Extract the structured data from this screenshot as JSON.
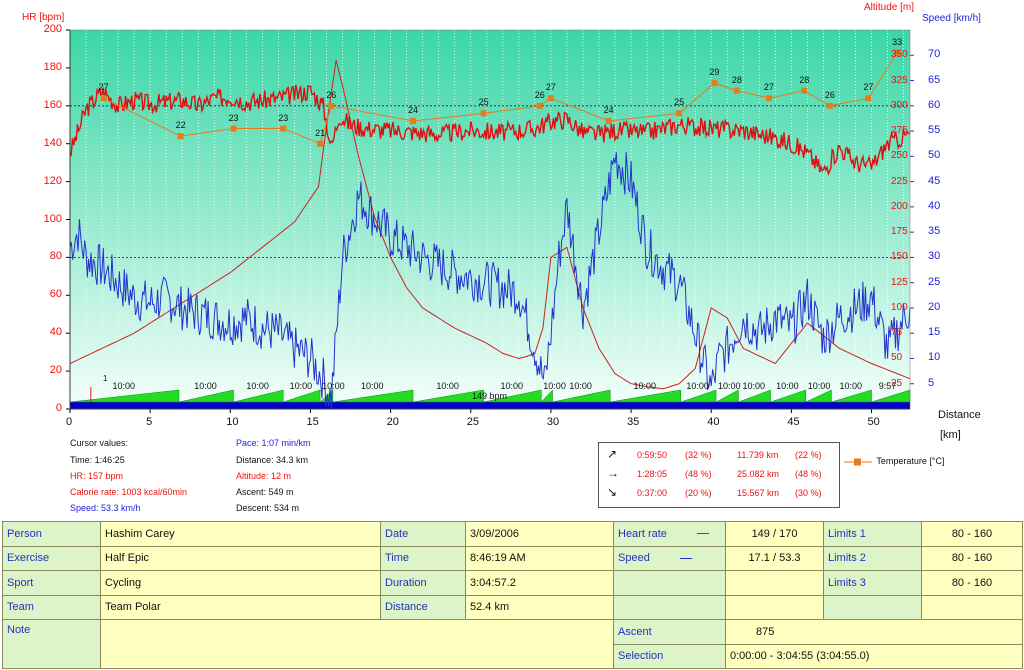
{
  "axes": {
    "hr_title": "HR [bpm]",
    "alt_title": "Altitude [m]",
    "speed_title": "Speed [km/h]",
    "dist_title": "Distance",
    "dist_unit": "[km]",
    "hr_ticks": [
      "200",
      "180",
      "160",
      "140",
      "120",
      "100",
      "80",
      "60",
      "40",
      "20",
      "0"
    ],
    "alt_ticks": [
      "350",
      "325",
      "300",
      "275",
      "250",
      "225",
      "200",
      "175",
      "150",
      "125",
      "100",
      "75",
      "50",
      "25"
    ],
    "speed_ticks": [
      "70",
      "65",
      "60",
      "55",
      "50",
      "45",
      "40",
      "35",
      "30",
      "25",
      "20",
      "15",
      "10",
      "5"
    ],
    "dist_ticks": [
      "0",
      "5",
      "10",
      "15",
      "20",
      "25",
      "30",
      "35",
      "40",
      "45",
      "50"
    ]
  },
  "chart_data": {
    "type": "line",
    "xlabel": "Distance [km]",
    "xlim": [
      0,
      52.4
    ],
    "hr_ylim": [
      0,
      200
    ],
    "alt_ylim": [
      0,
      375
    ],
    "speed_ylim": [
      0,
      75
    ],
    "hr_limits": [
      80,
      160
    ],
    "series": [
      {
        "name": "HR",
        "color": "#dd1111",
        "x": [
          0,
          1,
          2,
          3,
          4,
          5,
          6,
          7,
          8,
          9,
          10,
          11,
          12,
          13,
          14,
          15,
          15.8,
          16.3,
          16.8,
          17.5,
          18.5,
          20,
          21.5,
          23,
          25,
          27,
          29,
          30,
          31,
          32,
          33,
          34,
          36,
          38,
          40,
          42,
          44,
          45,
          46,
          47,
          48,
          49,
          50,
          51,
          52.4
        ],
        "values": [
          135,
          158,
          168,
          160,
          163,
          161,
          162,
          163,
          160,
          164,
          165,
          162,
          163,
          164,
          166,
          168,
          160,
          138,
          155,
          150,
          148,
          147,
          146,
          145,
          147,
          146,
          148,
          152,
          153,
          146,
          145,
          147,
          146,
          150,
          148,
          147,
          143,
          140,
          135,
          125,
          138,
          130,
          128,
          140,
          145
        ]
      },
      {
        "name": "Altitude",
        "color": "#cc2222",
        "x": [
          0,
          2,
          4,
          6,
          8,
          10,
          12,
          14,
          15.5,
          16,
          16.6,
          17,
          18,
          19,
          20,
          21,
          22,
          24,
          26,
          27,
          28,
          28.5,
          29,
          29.5,
          30,
          31,
          32,
          33,
          34,
          35,
          36,
          37,
          38,
          39,
          40,
          41,
          42,
          44,
          46,
          48,
          50,
          52.4
        ],
        "values": [
          45,
          60,
          75,
          95,
          115,
          135,
          160,
          185,
          220,
          280,
          345,
          320,
          250,
          190,
          150,
          120,
          100,
          80,
          65,
          55,
          50,
          52,
          55,
          80,
          150,
          160,
          100,
          60,
          35,
          25,
          22,
          20,
          25,
          40,
          100,
          90,
          60,
          45,
          85,
          60,
          45,
          30
        ]
      },
      {
        "name": "Speed",
        "color": "#2233cc",
        "x": [
          0,
          0.5,
          1,
          2,
          3,
          4,
          5,
          6,
          7,
          8,
          9,
          10,
          11,
          12,
          13,
          14,
          15,
          15.8,
          16.3,
          17,
          18,
          19,
          20,
          21,
          22,
          24,
          26,
          28,
          29,
          29.6,
          30,
          30.5,
          31,
          32,
          33,
          34,
          35,
          36,
          37,
          38,
          39,
          40,
          40.5,
          41,
          42,
          43,
          44,
          45,
          46,
          47,
          48,
          49,
          50,
          51,
          52.4
        ],
        "values": [
          32,
          35,
          30,
          28,
          25,
          22,
          21,
          22,
          20,
          19,
          18,
          17,
          18,
          16,
          15,
          12,
          10,
          6,
          2,
          30,
          42,
          38,
          34,
          32,
          30,
          27,
          25,
          23,
          12,
          5,
          15,
          30,
          40,
          20,
          35,
          50,
          45,
          32,
          28,
          25,
          15,
          4,
          10,
          12,
          18,
          15,
          18,
          16,
          22,
          14,
          18,
          20,
          22,
          12,
          20
        ]
      },
      {
        "name": "Temperature [°C]",
        "color": "#e87a1a",
        "x": [
          2.1,
          6.9,
          10.2,
          13.3,
          15.6,
          16.3,
          21.4,
          25.8,
          29.3,
          30,
          33.6,
          38,
          40.2,
          41.6,
          43.6,
          45.8,
          47.4,
          49.8,
          51.6
        ],
        "values": [
          27,
          22,
          23,
          23,
          21,
          26,
          24,
          25,
          26,
          27,
          24,
          25,
          29,
          28,
          27,
          28,
          26,
          27,
          33
        ],
        "labels": [
          "27",
          "22",
          "23",
          "23",
          "21",
          "26",
          "24",
          "25",
          "26",
          "27",
          "24",
          "25",
          "29",
          "28",
          "27",
          "28",
          "26",
          "27",
          "33"
        ]
      }
    ],
    "laps": [
      {
        "x": 0,
        "label": "10:00"
      },
      {
        "x": 6.8,
        "label": "10:00"
      },
      {
        "x": 10.2,
        "label": "10:00"
      },
      {
        "x": 13.3,
        "label": "10:00"
      },
      {
        "x": 15.6,
        "label": "10:00"
      },
      {
        "x": 16.4,
        "label": "10:00"
      },
      {
        "x": 21.4,
        "label": "10:00"
      },
      {
        "x": 25.8,
        "label": "10:00"
      },
      {
        "x": 29.4,
        "label": "10:00"
      },
      {
        "x": 30.1,
        "label": "10:00"
      },
      {
        "x": 33.7,
        "label": "10:00"
      },
      {
        "x": 38.1,
        "label": "10:00"
      },
      {
        "x": 40.3,
        "label": "10:00"
      },
      {
        "x": 41.7,
        "label": "10:00"
      },
      {
        "x": 43.7,
        "label": "10:00"
      },
      {
        "x": 45.9,
        "label": "10:00"
      },
      {
        "x": 47.5,
        "label": "10:00"
      },
      {
        "x": 50,
        "label": "9:57"
      }
    ],
    "lap_marker_label": "1",
    "avg_label": "149 bpm"
  },
  "cursor": {
    "header": "Cursor values:",
    "time": "Time: 1:46:25",
    "hr": "HR: 157 bpm",
    "calorie": "Calorie rate: 1003 kcal/60min",
    "speed": "Speed: 53.3 km/h",
    "pace": "Pace: 1:07 min/km",
    "distance": "Distance: 34.3 km",
    "altitude": "Altitude: 12 m",
    "ascent": "Ascent: 549 m",
    "descent": "Descent: 534 m"
  },
  "stats": [
    {
      "icon": "↗",
      "time": "0:59:50",
      "tpct": "(32 %)",
      "dist": "11.739 km",
      "dpct": "(22 %)"
    },
    {
      "icon": "→",
      "time": "1:28:05",
      "tpct": "(48 %)",
      "dist": "25.082 km",
      "dpct": "(48 %)"
    },
    {
      "icon": "↘",
      "time": "0:37:00",
      "tpct": "(20 %)",
      "dist": "15.567 km",
      "dpct": "(30 %)"
    }
  ],
  "legend": {
    "temperature": "Temperature [°C]"
  },
  "info": {
    "person_label": "Person",
    "person": "Hashim Carey",
    "exercise_label": "Exercise",
    "exercise": "Half Epic",
    "sport_label": "Sport",
    "sport": "Cycling",
    "team_label": "Team",
    "team": "Team Polar",
    "note_label": "Note",
    "date_label": "Date",
    "date": "3/09/2006",
    "time_label": "Time",
    "time": "8:46:19 AM",
    "duration_label": "Duration",
    "duration": "3:04:57.2",
    "distance_label": "Distance",
    "distance": "52.4 km",
    "hr_label": "Heart rate",
    "hr": "149 / 170",
    "speed_label": "Speed",
    "speed": "17.1 / 53.3",
    "ascent_label": "Ascent",
    "ascent": "875",
    "selection_label": "Selection",
    "selection": "0:00:00 - 3:04:55 (3:04:55.0)",
    "limits1_label": "Limits 1",
    "limits1": "80 - 160",
    "limits2_label": "Limits 2",
    "limits2": "80 - 160",
    "limits3_label": "Limits 3",
    "limits3": "80 - 160"
  }
}
